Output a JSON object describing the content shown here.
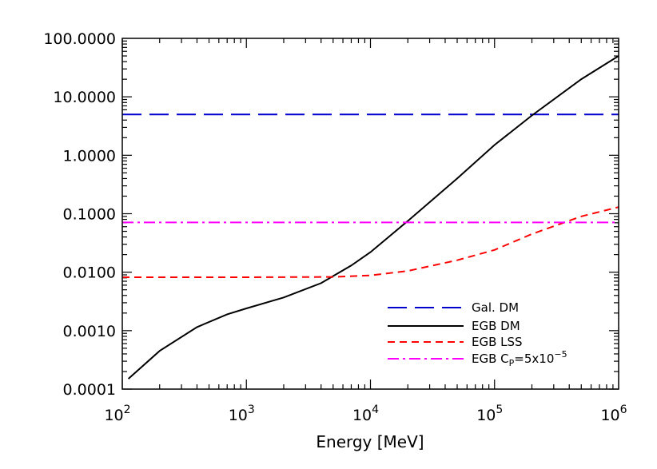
{
  "chart_data": {
    "type": "line",
    "title": "",
    "xlabel": "Energy [MeV]",
    "ylabel": "",
    "x_scale": "log",
    "y_scale": "log",
    "xlim": [
      100,
      1000000
    ],
    "ylim": [
      0.0001,
      100
    ],
    "grid": false,
    "legend_position": "bottom-right",
    "x_ticks": [
      {
        "value": 100,
        "base": "10",
        "exp": "2"
      },
      {
        "value": 1000,
        "base": "10",
        "exp": "3"
      },
      {
        "value": 10000,
        "base": "10",
        "exp": "4"
      },
      {
        "value": 100000,
        "base": "10",
        "exp": "5"
      },
      {
        "value": 1000000,
        "base": "10",
        "exp": "6"
      }
    ],
    "y_ticks": [
      {
        "value": 0.0001,
        "label": "0.0001"
      },
      {
        "value": 0.001,
        "label": "0.0010"
      },
      {
        "value": 0.01,
        "label": "0.0100"
      },
      {
        "value": 0.1,
        "label": "0.1000"
      },
      {
        "value": 1,
        "label": "1.0000"
      },
      {
        "value": 10,
        "label": "10.0000"
      },
      {
        "value": 100,
        "label": "100.0000"
      }
    ],
    "series": [
      {
        "name": "Gal. DM",
        "color": "#0000cc",
        "dash": "long-dash",
        "x": [
          100,
          1000000
        ],
        "y": [
          5.0,
          5.0
        ]
      },
      {
        "name": "EGB DM",
        "color": "#000000",
        "dash": "solid",
        "x": [
          112,
          200,
          400,
          700,
          1000,
          2000,
          4000,
          7000,
          10000,
          20000,
          50000,
          100000,
          200000,
          500000,
          1000000
        ],
        "y": [
          0.00015,
          0.00045,
          0.00115,
          0.0019,
          0.0024,
          0.0037,
          0.0065,
          0.013,
          0.022,
          0.075,
          0.4,
          1.5,
          4.8,
          20,
          50
        ]
      },
      {
        "name": "EGB LSS",
        "color": "#ff0000",
        "dash": "short-dash",
        "x": [
          100,
          1000,
          5000,
          10000,
          20000,
          50000,
          100000,
          200000,
          500000,
          1000000
        ],
        "y": [
          0.0082,
          0.0082,
          0.0083,
          0.0088,
          0.0105,
          0.016,
          0.024,
          0.045,
          0.09,
          0.13
        ]
      },
      {
        "name_prefix": "EGB C",
        "name_sub": "P",
        "name_mid": "=5x10",
        "name_sup": "−5",
        "color": "#ff00ff",
        "dash": "dash-dot",
        "x": [
          100,
          1000000
        ],
        "y": [
          0.071,
          0.071
        ]
      }
    ]
  }
}
